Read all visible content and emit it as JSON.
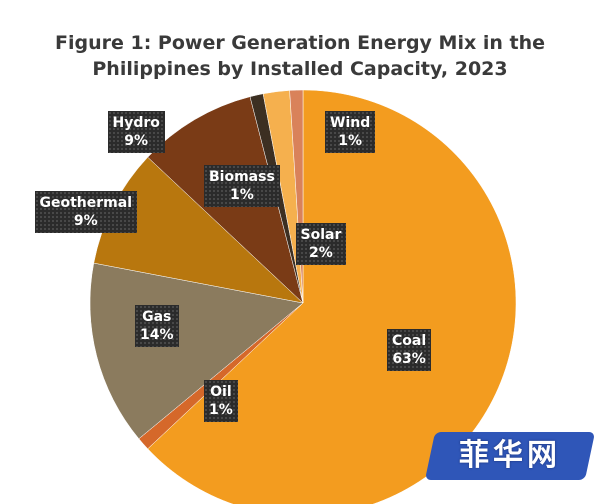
{
  "chart_data": {
    "type": "pie",
    "title_line1": "Figure 1: Power Generation Energy Mix in the",
    "title_line2": "Philippines by Installed Capacity, 2023",
    "slices": [
      {
        "name": "Coal",
        "value": 63,
        "label": "63%",
        "color": "#F39C1F"
      },
      {
        "name": "Oil",
        "value": 1,
        "label": "1%",
        "color": "#D5682A"
      },
      {
        "name": "Gas",
        "value": 14,
        "label": "14%",
        "color": "#8B7B5E"
      },
      {
        "name": "Geothermal",
        "value": 9,
        "label": "9%",
        "color": "#B8770E"
      },
      {
        "name": "Hydro",
        "value": 9,
        "label": "9%",
        "color": "#7A3B16"
      },
      {
        "name": "Biomass",
        "value": 1,
        "label": "1%",
        "color": "#3C2F22"
      },
      {
        "name": "Solar",
        "value": 2,
        "label": "2%",
        "color": "#F5B04E"
      },
      {
        "name": "Wind",
        "value": 1,
        "label": "1%",
        "color": "#D9825A"
      }
    ]
  },
  "watermark": {
    "text": "菲华网"
  }
}
